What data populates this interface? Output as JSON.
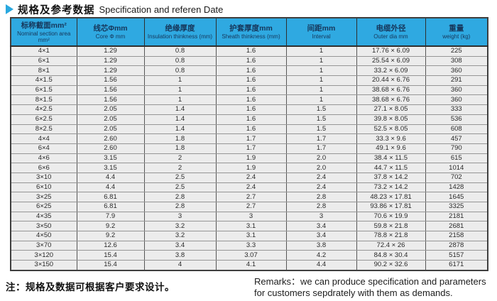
{
  "colors": {
    "accent": "#29a8df",
    "header_bg": "#2fa9e1"
  },
  "title": {
    "zh": "规格及参考数据",
    "en": "Specification and referen Date"
  },
  "table": {
    "columns": [
      {
        "zh": "标称截面mm²",
        "en": "Nominal section area mm²"
      },
      {
        "zh": "线芯Φmm",
        "en": "Core Φ mm"
      },
      {
        "zh": "绝缘厚度",
        "en": "Insulation thinkness (mm)"
      },
      {
        "zh": "护套厚度mm",
        "en": "Sheath thinkness (mm)"
      },
      {
        "zh": "间距mm",
        "en": "Interval"
      },
      {
        "zh": "电缆外径",
        "en": "Outer dia mm"
      },
      {
        "zh": "重量",
        "en": "weight (kg)"
      }
    ],
    "rows": [
      [
        "4×1",
        "1.29",
        "0.8",
        "1.6",
        "1",
        "17.76 × 6.09",
        "225"
      ],
      [
        "6×1",
        "1.29",
        "0.8",
        "1.6",
        "1",
        "25.54 × 6.09",
        "308"
      ],
      [
        "8×1",
        "1.29",
        "0.8",
        "1.6",
        "1",
        "33.2 × 6.09",
        "360"
      ],
      [
        "4×1.5",
        "1.56",
        "1",
        "1.6",
        "1",
        "20.44 × 6.76",
        "291"
      ],
      [
        "6×1.5",
        "1.56",
        "1",
        "1.6",
        "1",
        "38.68 × 6.76",
        "360"
      ],
      [
        "8×1.5",
        "1.56",
        "1",
        "1.6",
        "1",
        "38.68 × 6.76",
        "360"
      ],
      [
        "4×2.5",
        "2.05",
        "1.4",
        "1.6",
        "1.5",
        "27.1 × 8.05",
        "333"
      ],
      [
        "6×2.5",
        "2.05",
        "1.4",
        "1.6",
        "1.5",
        "39.8 × 8.05",
        "536"
      ],
      [
        "8×2.5",
        "2.05",
        "1.4",
        "1.6",
        "1.5",
        "52.5 × 8.05",
        "608"
      ],
      [
        "4×4",
        "2.60",
        "1.8",
        "1.7",
        "1.7",
        "33.3 × 9.6",
        "457"
      ],
      [
        "6×4",
        "2.60",
        "1.8",
        "1.7",
        "1.7",
        "49.1 × 9.6",
        "790"
      ],
      [
        "4×6",
        "3.15",
        "2",
        "1.9",
        "2.0",
        "38.4 × 11.5",
        "615"
      ],
      [
        "6×6",
        "3.15",
        "2",
        "1.9",
        "2.0",
        "44.7 × 11.5",
        "1014"
      ],
      [
        "3×10",
        "4.4",
        "2.5",
        "2.4",
        "2.4",
        "37.8 × 14.2",
        "702"
      ],
      [
        "6×10",
        "4.4",
        "2.5",
        "2.4",
        "2.4",
        "73.2 × 14.2",
        "1428"
      ],
      [
        "3×25",
        "6.81",
        "2.8",
        "2.7",
        "2.8",
        "48.23 × 17.81",
        "1645"
      ],
      [
        "6×25",
        "6.81",
        "2.8",
        "2.7",
        "2.8",
        "93.86 × 17.81",
        "3325"
      ],
      [
        "4×35",
        "7.9",
        "3",
        "3",
        "3",
        "70.6 × 19.9",
        "2181"
      ],
      [
        "3×50",
        "9.2",
        "3.2",
        "3.1",
        "3.4",
        "59.8 × 21.8",
        "2681"
      ],
      [
        "4×50",
        "9.2",
        "3.2",
        "3.1",
        "3.4",
        "78.8 × 21.8",
        "2158"
      ],
      [
        "3×70",
        "12.6",
        "3.4",
        "3.3",
        "3.8",
        "72.4 × 26",
        "2878"
      ],
      [
        "3×120",
        "15.4",
        "3.8",
        "3.07",
        "4.2",
        "84.8 × 30.4",
        "5157"
      ],
      [
        "3×150",
        "15.4",
        "4",
        "4.1",
        "4.4",
        "90.2 × 32.6",
        "6171"
      ]
    ]
  },
  "notes": {
    "zh": "注：规格及数据可根据客户要求设计。",
    "en_line1": "Remarks：we can produce specification and parameters",
    "en_line2": "for customers sepdrately with them as demands."
  }
}
